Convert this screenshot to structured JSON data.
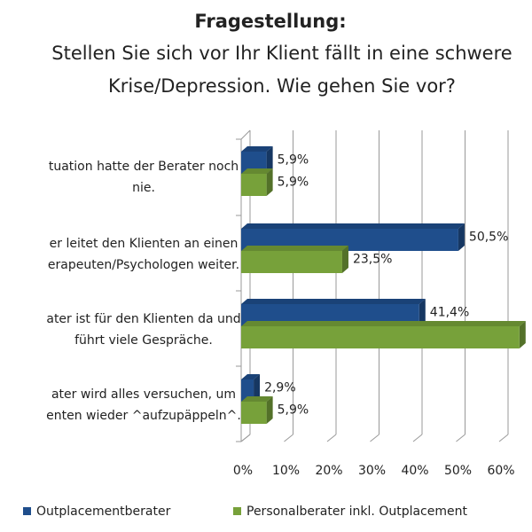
{
  "chart_data": {
    "type": "bar",
    "orientation": "horizontal",
    "title": "Fragestellung:",
    "subtitle": [
      "Stellen Sie sich vor Ihr Klient fällt in eine schwere",
      "Krise/Depression. Wie gehen Sie vor?"
    ],
    "categories": [
      [
        "tuation hatte der Berater noch",
        "nie."
      ],
      [
        "er leitet den Klienten an einen",
        "erapeuten/Psychologen weiter."
      ],
      [
        "ater ist für den Klienten da und",
        "führt viele Gespräche."
      ],
      [
        "ater wird alles versuchen, um",
        "enten wieder ^aufzupäppeln^."
      ]
    ],
    "series": [
      {
        "name": "Outplacementberater",
        "color": "#1f4e8c",
        "values": [
          5.9,
          50.5,
          41.4,
          2.9
        ],
        "value_labels": [
          "5,9%",
          "50,5%",
          "41,4%",
          "2,9%"
        ]
      },
      {
        "name": "Personalberater inkl. Outplacement",
        "color": "#77a13a",
        "values": [
          5.9,
          23.5,
          64.7,
          5.9
        ],
        "value_labels": [
          "5,9%",
          "23,5%",
          null,
          "5,9%"
        ]
      }
    ],
    "xlim": [
      0,
      60
    ],
    "xticks": [
      {
        "value": 0,
        "label": "0%"
      },
      {
        "value": 10,
        "label": "10%"
      },
      {
        "value": 20,
        "label": "20%"
      },
      {
        "value": 30,
        "label": "30%"
      },
      {
        "value": 40,
        "label": "40%"
      },
      {
        "value": 50,
        "label": "50%"
      },
      {
        "value": 60,
        "label": "60%"
      }
    ],
    "grid": true,
    "legend": "bottom"
  }
}
